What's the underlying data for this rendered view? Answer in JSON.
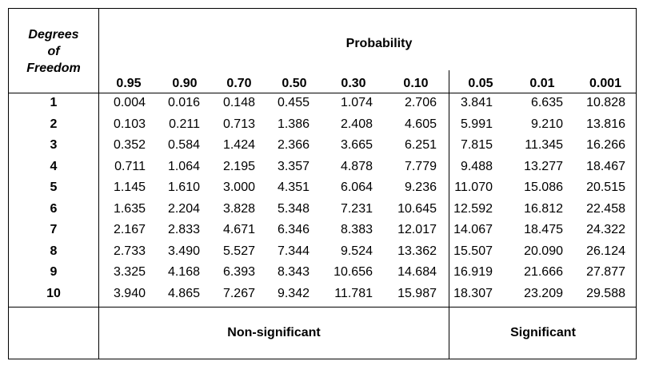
{
  "header": {
    "dof_line1": "Degrees",
    "dof_line2": "of",
    "dof_line3": "Freedom",
    "probability_title": "Probability"
  },
  "probabilities": [
    "0.95",
    "0.90",
    "0.70",
    "0.50",
    "0.30",
    "0.10",
    "0.05",
    "0.01",
    "0.001"
  ],
  "rows": [
    {
      "df": "1",
      "values": [
        "0.004",
        "0.016",
        "0.148",
        "0.455",
        "1.074",
        "2.706",
        "3.841",
        "6.635",
        "10.828"
      ]
    },
    {
      "df": "2",
      "values": [
        "0.103",
        "0.211",
        "0.713",
        "1.386",
        "2.408",
        "4.605",
        "5.991",
        "9.210",
        "13.816"
      ]
    },
    {
      "df": "3",
      "values": [
        "0.352",
        "0.584",
        "1.424",
        "2.366",
        "3.665",
        "6.251",
        "7.815",
        "11.345",
        "16.266"
      ]
    },
    {
      "df": "4",
      "values": [
        "0.711",
        "1.064",
        "2.195",
        "3.357",
        "4.878",
        "7.779",
        "9.488",
        "13.277",
        "18.467"
      ]
    },
    {
      "df": "5",
      "values": [
        "1.145",
        "1.610",
        "3.000",
        "4.351",
        "6.064",
        "9.236",
        "11.070",
        "15.086",
        "20.515"
      ]
    },
    {
      "df": "6",
      "values": [
        "1.635",
        "2.204",
        "3.828",
        "5.348",
        "7.231",
        "10.645",
        "12.592",
        "16.812",
        "22.458"
      ]
    },
    {
      "df": "7",
      "values": [
        "2.167",
        "2.833",
        "4.671",
        "6.346",
        "8.383",
        "12.017",
        "14.067",
        "18.475",
        "24.322"
      ]
    },
    {
      "df": "8",
      "values": [
        "2.733",
        "3.490",
        "5.527",
        "7.344",
        "9.524",
        "13.362",
        "15.507",
        "20.090",
        "26.124"
      ]
    },
    {
      "df": "9",
      "values": [
        "3.325",
        "4.168",
        "6.393",
        "8.343",
        "10.656",
        "14.684",
        "16.919",
        "21.666",
        "27.877"
      ]
    },
    {
      "df": "10",
      "values": [
        "3.940",
        "4.865",
        "7.267",
        "9.342",
        "11.781",
        "15.987",
        "18.307",
        "23.209",
        "29.588"
      ]
    }
  ],
  "footer": {
    "non_significant": "Non-significant",
    "significant": "Significant"
  }
}
